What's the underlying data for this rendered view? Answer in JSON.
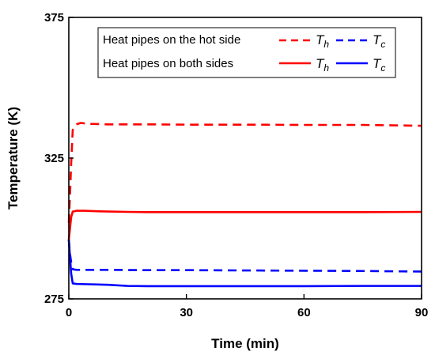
{
  "chart_data": {
    "type": "line",
    "title": "",
    "xlabel": "Time (min)",
    "ylabel": "Temperature (K)",
    "xlim": [
      0,
      90
    ],
    "ylim": [
      275,
      375
    ],
    "xticks": [
      0,
      30,
      60,
      90
    ],
    "yticks": [
      275,
      325,
      375
    ],
    "grid": false,
    "legend_position": "top-left",
    "legend": {
      "rows": [
        {
          "label": "Heat pipes on the hot side"
        },
        {
          "label": "Heat pipes on both sides"
        }
      ],
      "symbol_h_base": "T",
      "symbol_h_sub": "h",
      "symbol_c_base": "T",
      "symbol_c_sub": "c"
    },
    "series": [
      {
        "name": "Th",
        "group": "Heat pipes on the hot side",
        "color": "#ff0000",
        "dash": "dashed",
        "x": [
          0,
          0.3,
          0.6,
          1,
          1.5,
          2,
          3,
          5,
          10,
          20,
          30,
          45,
          60,
          75,
          90
        ],
        "y": [
          302,
          312,
          323,
          335,
          336,
          337,
          337.5,
          337.2,
          337,
          337,
          336.9,
          336.9,
          336.8,
          336.8,
          336.5
        ]
      },
      {
        "name": "Tc",
        "group": "Heat pipes on the hot side",
        "color": "#0000ff",
        "dash": "dashed",
        "x": [
          0,
          0.3,
          0.7,
          1,
          2,
          5,
          10,
          20,
          30,
          45,
          60,
          75,
          90
        ],
        "y": [
          296,
          291,
          287,
          285.5,
          285.3,
          285.3,
          285.3,
          285.2,
          285.2,
          285.1,
          285,
          284.9,
          284.7
        ]
      },
      {
        "name": "Th",
        "group": "Heat pipes on both sides",
        "color": "#ff0000",
        "dash": "solid",
        "x": [
          0,
          0.3,
          0.6,
          1,
          2,
          4,
          8,
          15,
          20,
          30,
          45,
          60,
          75,
          90
        ],
        "y": [
          296,
          300,
          304,
          306,
          306.3,
          306.3,
          306.1,
          305.9,
          305.8,
          305.8,
          305.8,
          305.8,
          305.8,
          305.9
        ]
      },
      {
        "name": "Tc",
        "group": "Heat pipes on both sides",
        "color": "#0000ff",
        "dash": "solid",
        "x": [
          0,
          0.3,
          0.6,
          1,
          2,
          5,
          10,
          15,
          20,
          30,
          45,
          60,
          75,
          90
        ],
        "y": [
          296,
          290,
          284,
          280.5,
          280.3,
          280.2,
          280,
          279.6,
          279.5,
          279.5,
          279.5,
          279.5,
          279.6,
          279.6
        ]
      }
    ]
  }
}
